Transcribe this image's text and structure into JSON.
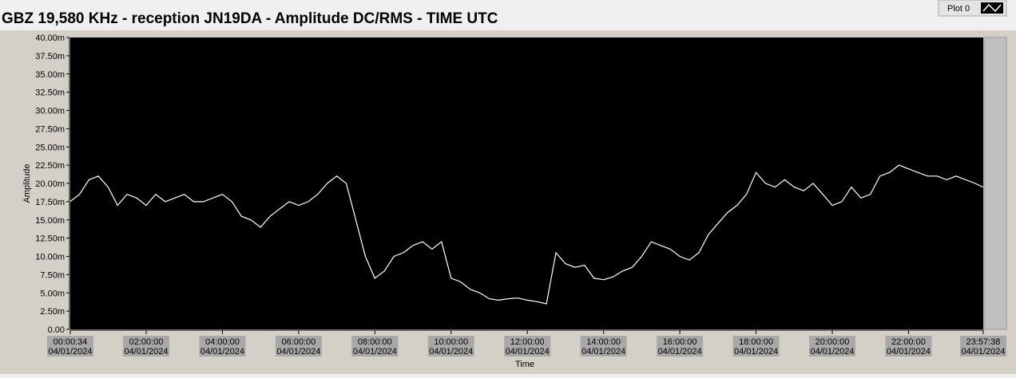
{
  "chart_data": {
    "type": "line",
    "title": "GBZ  19,580 KHz - reception JN19DA -  Amplitude DC/RMS   - TIME UTC",
    "x_label": "Time",
    "y_label": "Amplitude",
    "x": [
      "00:00",
      "00:15",
      "00:30",
      "00:45",
      "01:00",
      "01:15",
      "01:30",
      "01:45",
      "02:00",
      "02:15",
      "02:30",
      "02:45",
      "03:00",
      "03:15",
      "03:30",
      "03:45",
      "04:00",
      "04:15",
      "04:30",
      "04:45",
      "05:00",
      "05:15",
      "05:30",
      "05:45",
      "06:00",
      "06:15",
      "06:30",
      "06:45",
      "07:00",
      "07:15",
      "07:30",
      "07:45",
      "08:00",
      "08:15",
      "08:30",
      "08:45",
      "09:00",
      "09:15",
      "09:30",
      "09:45",
      "10:00",
      "10:15",
      "10:30",
      "10:45",
      "11:00",
      "11:15",
      "11:30",
      "11:45",
      "12:00",
      "12:15",
      "12:30",
      "12:45",
      "13:00",
      "13:15",
      "13:30",
      "13:45",
      "14:00",
      "14:15",
      "14:30",
      "14:45",
      "15:00",
      "15:15",
      "15:30",
      "15:45",
      "16:00",
      "16:15",
      "16:30",
      "16:45",
      "17:00",
      "17:15",
      "17:30",
      "17:45",
      "18:00",
      "18:15",
      "18:30",
      "18:45",
      "19:00",
      "19:15",
      "19:30",
      "19:45",
      "20:00",
      "20:15",
      "20:30",
      "20:45",
      "21:00",
      "21:15",
      "21:30",
      "21:45",
      "22:00",
      "22:15",
      "22:30",
      "22:45",
      "23:00",
      "23:15",
      "23:30",
      "23:45",
      "23:57"
    ],
    "series": [
      {
        "name": "Plot 0",
        "color": "#ffffff",
        "values": [
          17.5,
          18.5,
          20.5,
          21,
          19.5,
          17,
          18.5,
          18,
          17,
          18.5,
          17.5,
          18,
          18.5,
          17.5,
          17.5,
          18,
          18.5,
          17.5,
          15.5,
          15,
          14,
          15.5,
          16.5,
          17.5,
          17,
          17.5,
          18.5,
          20,
          21,
          20,
          15,
          10,
          7,
          8,
          10,
          10.5,
          11.5,
          12,
          11,
          12,
          7,
          6.5,
          5.5,
          5,
          4.2,
          4,
          4.2,
          4.3,
          4,
          3.8,
          3.5,
          10.5,
          9,
          8.5,
          8.8,
          7,
          6.8,
          7.2,
          8,
          8.5,
          10,
          12,
          11.5,
          11,
          10,
          9.5,
          10.5,
          13,
          14.5,
          16,
          17,
          18.5,
          21.5,
          20,
          19.5,
          20.5,
          19.5,
          19,
          20,
          18.5,
          17,
          17.5,
          19.5,
          18,
          18.5,
          21,
          21.5,
          22.5,
          22,
          21.5,
          21,
          21,
          20.5,
          21,
          20.5,
          20,
          19.5
        ]
      }
    ],
    "xlim": [
      "00:00:34",
      "23:57:38"
    ],
    "xticks": [
      "00:00:34",
      "02:00:00",
      "04:00:00",
      "06:00:00",
      "08:00:00",
      "10:00:00",
      "12:00:00",
      "14:00:00",
      "16:00:00",
      "18:00:00",
      "20:00:00",
      "22:00:00",
      "23:57:38"
    ],
    "xtick_date": "04/01/2024",
    "ylim": [
      0,
      40
    ],
    "yticks": [
      {
        "value": 0,
        "label": "0.00"
      },
      {
        "value": 2.5,
        "label": "2.50m"
      },
      {
        "value": 5,
        "label": "5.00m"
      },
      {
        "value": 7.5,
        "label": "7.50m"
      },
      {
        "value": 10,
        "label": "10.00m"
      },
      {
        "value": 12.5,
        "label": "12.50m"
      },
      {
        "value": 15,
        "label": "15.00m"
      },
      {
        "value": 17.5,
        "label": "17.50m"
      },
      {
        "value": 20,
        "label": "20.00m"
      },
      {
        "value": 22.5,
        "label": "22.50m"
      },
      {
        "value": 25,
        "label": "25.00m"
      },
      {
        "value": 27.5,
        "label": "27.50m"
      },
      {
        "value": 30,
        "label": "30.00m"
      },
      {
        "value": 32.5,
        "label": "32.50m"
      },
      {
        "value": 35,
        "label": "35.00m"
      },
      {
        "value": 37.5,
        "label": "37.50m"
      },
      {
        "value": 40,
        "label": "40.00m"
      }
    ],
    "background": "#000000"
  }
}
